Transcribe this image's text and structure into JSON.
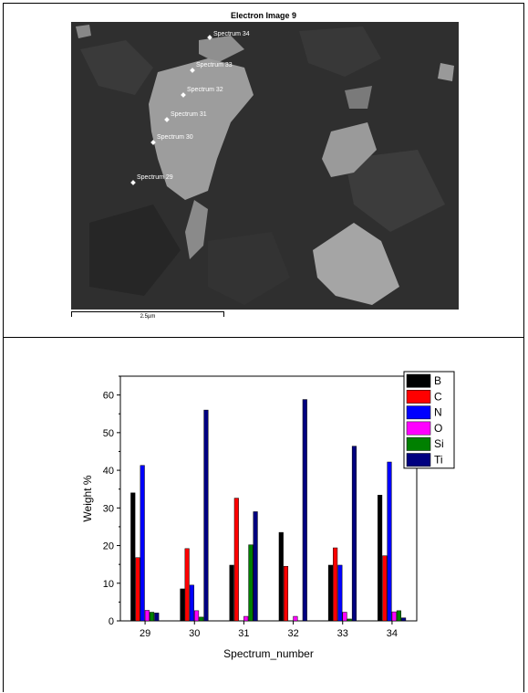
{
  "image_panel": {
    "title": "Electron Image 9",
    "scale_bar_label": "2.5µm",
    "spectra": [
      "Spectrum 34",
      "Spectrum 33",
      "Spectrum 32",
      "Spectrum 31",
      "Spectrum 30",
      "Spectrum 29"
    ]
  },
  "chart_data": {
    "type": "bar",
    "xlabel": "Spectrum_number",
    "ylabel": "Weight %",
    "ylim": [
      0,
      65
    ],
    "yticks": [
      0,
      10,
      20,
      30,
      40,
      50,
      60
    ],
    "categories": [
      "29",
      "30",
      "31",
      "32",
      "33",
      "34"
    ],
    "legend_position": "top-right",
    "grid": false,
    "series": [
      {
        "name": "B",
        "color": "#000000",
        "values": [
          34.0,
          8.5,
          14.8,
          23.5,
          14.8,
          33.4
        ]
      },
      {
        "name": "C",
        "color": "#ff0000",
        "values": [
          16.8,
          19.2,
          32.6,
          14.5,
          19.4,
          17.3
        ]
      },
      {
        "name": "N",
        "color": "#0000ff",
        "values": [
          41.3,
          9.5,
          0,
          0,
          14.8,
          42.2
        ]
      },
      {
        "name": "O",
        "color": "#ff00ff",
        "values": [
          2.8,
          2.7,
          1.2,
          1.2,
          2.3,
          2.4
        ]
      },
      {
        "name": "Si",
        "color": "#008000",
        "values": [
          2.3,
          1.0,
          20.2,
          0,
          0.5,
          2.7
        ]
      },
      {
        "name": "Ti",
        "color": "#000080",
        "values": [
          2.1,
          56.0,
          29.0,
          58.8,
          46.4,
          0.8
        ]
      }
    ]
  }
}
